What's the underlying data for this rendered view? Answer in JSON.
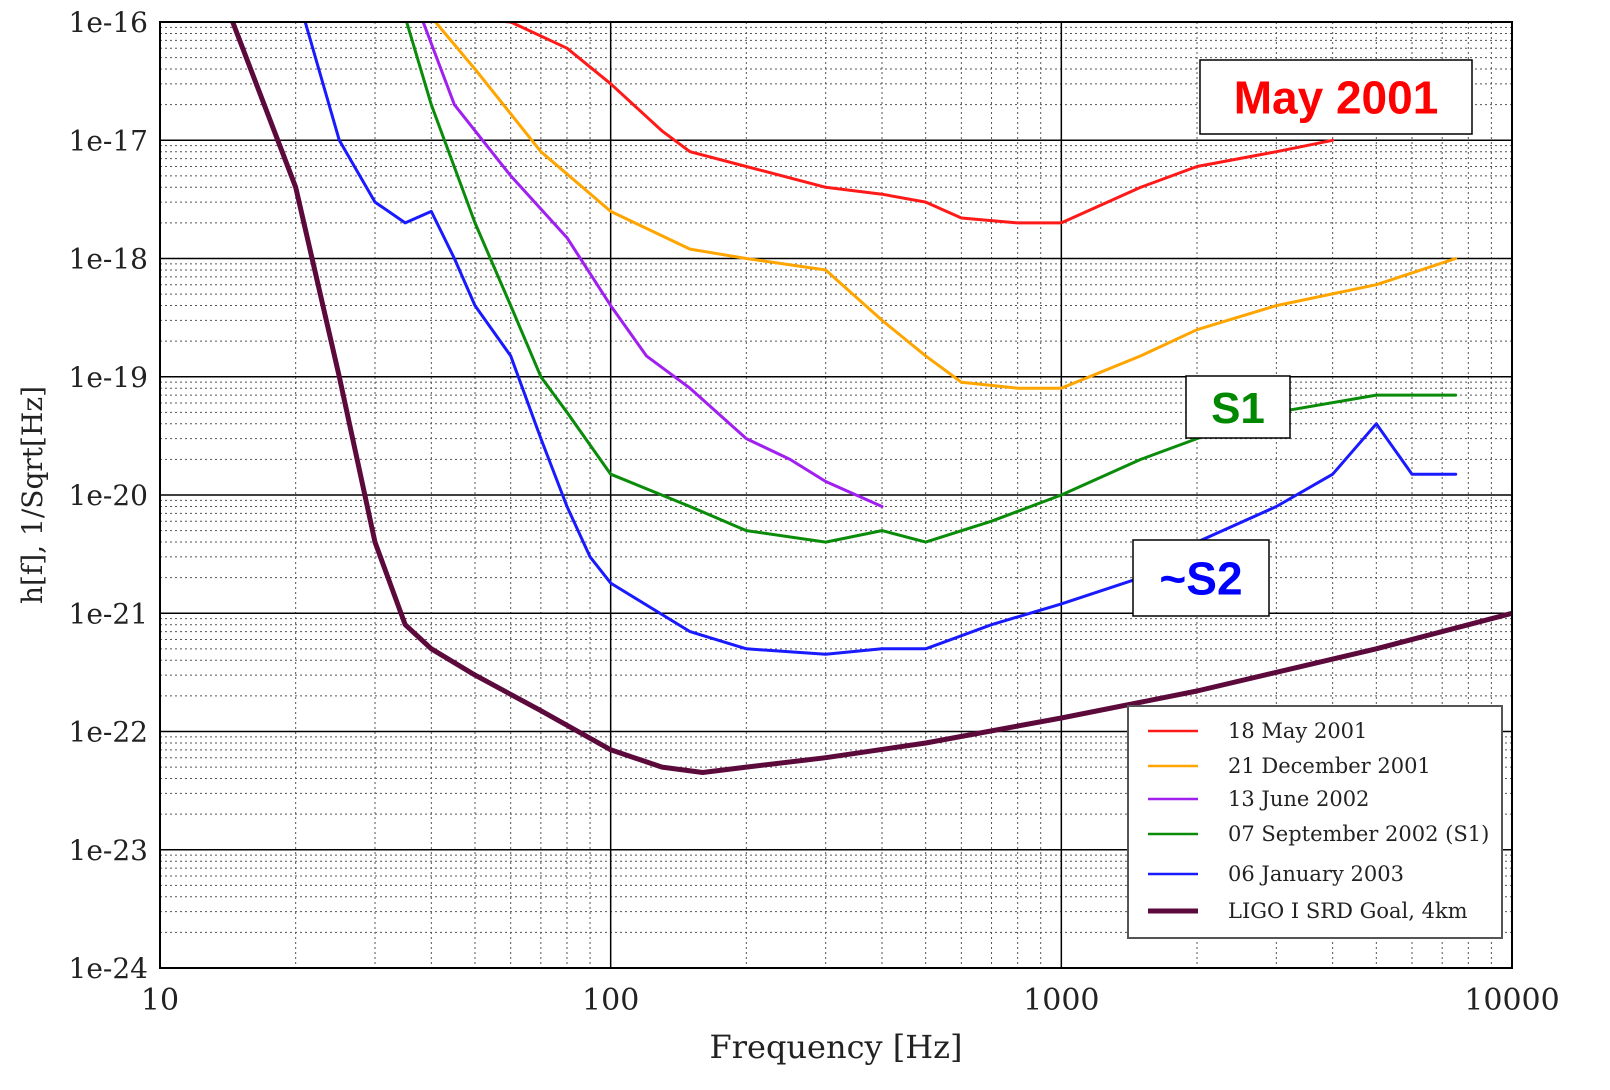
{
  "chart_data": {
    "type": "line",
    "title": "",
    "xlabel": "Frequency [Hz]",
    "ylabel": "h[f], 1/Sqrt[Hz]",
    "xscale": "log",
    "yscale": "log",
    "xlim": [
      10,
      10000
    ],
    "ylim": [
      1e-24,
      1e-16
    ],
    "x_tick_labels": [
      "10",
      "100",
      "1000",
      "10000"
    ],
    "y_tick_labels": [
      "1e-16",
      "1e-17",
      "1e-18",
      "1e-19",
      "1e-20",
      "1e-21",
      "1e-22",
      "1e-23",
      "1e-24"
    ],
    "grid": true,
    "legend_position": "bottom-right",
    "series": [
      {
        "name": "18 May 2001",
        "color": "#ff1a1a",
        "x": [
          45,
          60,
          80,
          100,
          130,
          150,
          200,
          300,
          400,
          500,
          600,
          800,
          1000,
          1500,
          2000,
          3000,
          4000
        ],
        "y": [
          1.1e-16,
          1e-16,
          6e-17,
          3e-17,
          1.2e-17,
          8e-18,
          6e-18,
          4e-18,
          3.5e-18,
          3e-18,
          2.2e-18,
          2e-18,
          2e-18,
          4e-18,
          6e-18,
          8e-18,
          1e-17
        ]
      },
      {
        "name": "21 December 2001",
        "color": "#ffa500",
        "x": [
          40,
          50,
          70,
          100,
          150,
          200,
          300,
          400,
          500,
          600,
          800,
          1000,
          1500,
          2000,
          3000,
          5000,
          7500
        ],
        "y": [
          1.1e-16,
          4e-17,
          8e-18,
          2.5e-18,
          1.2e-18,
          1e-18,
          8e-19,
          3e-19,
          1.5e-19,
          9e-20,
          8e-20,
          8e-20,
          1.5e-19,
          2.5e-19,
          4e-19,
          6e-19,
          1e-18
        ]
      },
      {
        "name": "13 June 2002",
        "color": "#a020f0",
        "x": [
          38,
          45,
          60,
          80,
          100,
          120,
          150,
          200,
          250,
          300,
          400
        ],
        "y": [
          1.1e-16,
          2e-17,
          5e-18,
          1.5e-18,
          4e-19,
          1.5e-19,
          8e-20,
          3e-20,
          2e-20,
          1.3e-20,
          8e-21
        ]
      },
      {
        "name": "07 September 2002 (S1)",
        "color": "#0a8c0a",
        "x": [
          35,
          40,
          50,
          60,
          70,
          80,
          100,
          150,
          200,
          300,
          400,
          500,
          700,
          1000,
          1500,
          2000,
          3000,
          5000,
          7500
        ],
        "y": [
          1.1e-16,
          2e-17,
          2e-18,
          4e-19,
          1e-19,
          5e-20,
          1.5e-20,
          8e-21,
          5e-21,
          4e-21,
          5e-21,
          4e-21,
          6e-21,
          1e-20,
          2e-20,
          3e-20,
          5e-20,
          7e-20,
          7e-20
        ]
      },
      {
        "name": "06 January 2003",
        "color": "#1a1aff",
        "x": [
          21,
          25,
          30,
          35,
          40,
          45,
          50,
          60,
          70,
          80,
          90,
          100,
          150,
          200,
          300,
          400,
          500,
          700,
          1000,
          1500,
          2000,
          3000,
          4000,
          5000,
          6000,
          7500
        ],
        "y": [
          1e-16,
          1e-17,
          3e-18,
          2e-18,
          2.5e-18,
          1e-18,
          4e-19,
          1.5e-19,
          3e-20,
          8e-21,
          3e-21,
          1.8e-21,
          7e-22,
          5e-22,
          4.5e-22,
          5e-22,
          5e-22,
          8e-22,
          1.2e-21,
          2e-21,
          4e-21,
          8e-21,
          1.5e-20,
          4e-20,
          1.5e-20,
          1.5e-20
        ]
      },
      {
        "name": "LIGO I SRD Goal, 4km",
        "color": "#5c0a3c",
        "x": [
          14.5,
          20,
          25,
          30,
          35,
          40,
          50,
          70,
          100,
          130,
          160,
          200,
          300,
          500,
          1000,
          2000,
          5000,
          10000
        ],
        "y": [
          1e-16,
          4e-18,
          1e-19,
          4e-21,
          8e-22,
          5e-22,
          3e-22,
          1.5e-22,
          7e-23,
          5e-23,
          4.5e-23,
          5e-23,
          6e-23,
          8e-23,
          1.3e-22,
          2.2e-22,
          5e-22,
          1e-21
        ]
      }
    ],
    "annotations": [
      {
        "text": "May 2001",
        "color": "#ff0000"
      },
      {
        "text": "S1",
        "color": "#008800"
      },
      {
        "text": "~S2",
        "color": "#0000ff"
      }
    ]
  }
}
